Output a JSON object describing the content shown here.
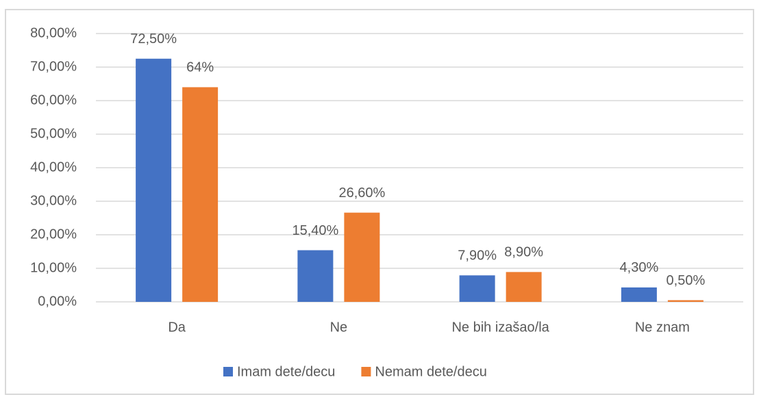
{
  "chart_data": {
    "type": "bar",
    "categories": [
      "Da",
      "Ne",
      "Ne bih izašao/la",
      "Ne znam"
    ],
    "series": [
      {
        "name": "Imam dete/decu",
        "color": "#4472c4",
        "values": [
          72.5,
          15.4,
          7.9,
          4.3
        ],
        "value_labels": [
          "72,50%",
          "15,40%",
          "7,90%",
          "4,30%"
        ]
      },
      {
        "name": "Nemam dete/decu",
        "color": "#ed7d31",
        "values": [
          64,
          26.6,
          8.9,
          0.5
        ],
        "value_labels": [
          "64%",
          "26,60%",
          "8,90%",
          "0,50%"
        ]
      }
    ],
    "ylim": [
      0,
      80
    ],
    "yticks": [
      {
        "value": 0,
        "label": "0,00%"
      },
      {
        "value": 10,
        "label": "10,00%"
      },
      {
        "value": 20,
        "label": "20,00%"
      },
      {
        "value": 30,
        "label": "30,00%"
      },
      {
        "value": 40,
        "label": "40,00%"
      },
      {
        "value": 50,
        "label": "50,00%"
      },
      {
        "value": 60,
        "label": "60,00%"
      },
      {
        "value": 70,
        "label": "70,00%"
      },
      {
        "value": 80,
        "label": "80,00%"
      }
    ],
    "grid": true,
    "legend": "bottom"
  }
}
